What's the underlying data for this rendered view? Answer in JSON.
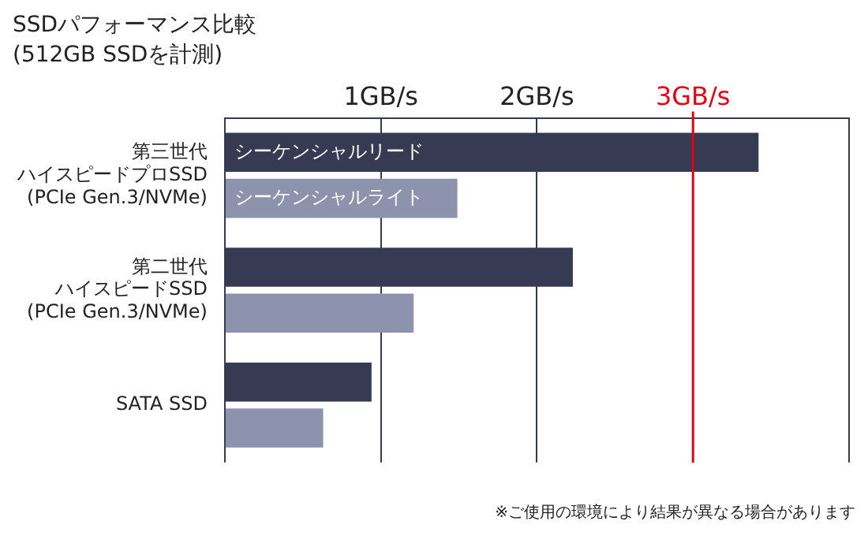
{
  "chart_data": {
    "type": "bar",
    "orientation": "horizontal",
    "title": "SSDパフォーマンス比較",
    "subtitle": "(512GB SSDを計測)",
    "categories": [
      "第三世代ハイスピードプロSSD (PCIe Gen.3/NVMe)",
      "第二世代ハイスピードSSD (PCIe Gen.3/NVMe)",
      "SATA SSD"
    ],
    "series": [
      {
        "name": "シーケンシャルリード",
        "color": "#363a52",
        "values": [
          3.42,
          2.23,
          0.94
        ]
      },
      {
        "name": "シーケンシャルライト",
        "color": "#8e93ad",
        "values": [
          1.49,
          1.21,
          0.63
        ]
      }
    ],
    "xlim": [
      0,
      4
    ],
    "xticks": [
      {
        "value": 0,
        "label": null
      },
      {
        "value": 1,
        "label": "1GB/s"
      },
      {
        "value": 2,
        "label": "2GB/s"
      },
      {
        "value": 3,
        "label": "3GB/s"
      },
      {
        "value": 4,
        "label": null
      }
    ],
    "ref_lines": [
      {
        "axis": "x",
        "value": 3,
        "color": "#e60012"
      }
    ],
    "grid": "x",
    "legend": false,
    "annotations": [
      "※ご使用の環境により結果が異なる場合があります"
    ]
  }
}
